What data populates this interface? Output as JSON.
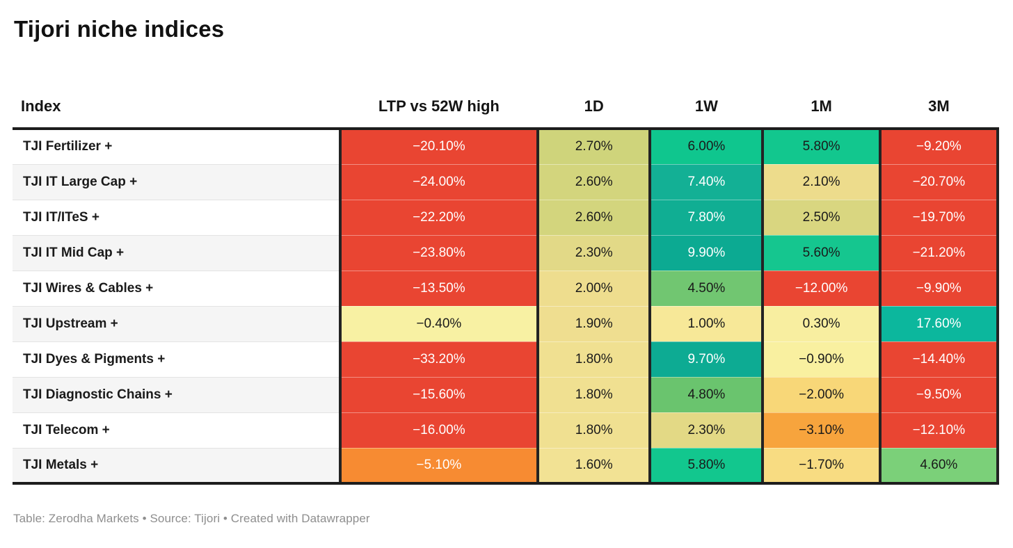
{
  "title": "Tijori niche indices",
  "columns": [
    "Index",
    "LTP vs 52W high",
    "1D",
    "1W",
    "1M",
    "3M"
  ],
  "rows": [
    {
      "label": "TJI Fertilizer +",
      "cells": [
        {
          "text": "−20.10%",
          "bg": "#e94532",
          "fg": "#ffffff"
        },
        {
          "text": "2.70%",
          "bg": "#cfd47b",
          "fg": "#1a1a1a"
        },
        {
          "text": "6.00%",
          "bg": "#0fc68e",
          "fg": "#1a1a1a"
        },
        {
          "text": "5.80%",
          "bg": "#12c78e",
          "fg": "#1a1a1a"
        },
        {
          "text": "−9.20%",
          "bg": "#e94532",
          "fg": "#ffffff"
        }
      ]
    },
    {
      "label": "TJI IT Large Cap +",
      "cells": [
        {
          "text": "−24.00%",
          "bg": "#e94532",
          "fg": "#ffffff"
        },
        {
          "text": "2.60%",
          "bg": "#d3d57d",
          "fg": "#1a1a1a"
        },
        {
          "text": "7.40%",
          "bg": "#13b095",
          "fg": "#ffffff"
        },
        {
          "text": "2.10%",
          "bg": "#eddc8c",
          "fg": "#1a1a1a"
        },
        {
          "text": "−20.70%",
          "bg": "#e94532",
          "fg": "#ffffff"
        }
      ]
    },
    {
      "label": "TJI IT/ITeS +",
      "cells": [
        {
          "text": "−22.20%",
          "bg": "#e94532",
          "fg": "#ffffff"
        },
        {
          "text": "2.60%",
          "bg": "#d3d57d",
          "fg": "#1a1a1a"
        },
        {
          "text": "7.80%",
          "bg": "#10ae93",
          "fg": "#ffffff"
        },
        {
          "text": "2.50%",
          "bg": "#d9d680",
          "fg": "#1a1a1a"
        },
        {
          "text": "−19.70%",
          "bg": "#e94532",
          "fg": "#ffffff"
        }
      ]
    },
    {
      "label": "TJI IT Mid Cap +",
      "cells": [
        {
          "text": "−23.80%",
          "bg": "#e94532",
          "fg": "#ffffff"
        },
        {
          "text": "2.30%",
          "bg": "#e2d987",
          "fg": "#1a1a1a"
        },
        {
          "text": "9.90%",
          "bg": "#0caa92",
          "fg": "#ffffff"
        },
        {
          "text": "5.60%",
          "bg": "#15c68f",
          "fg": "#1a1a1a"
        },
        {
          "text": "−21.20%",
          "bg": "#e94532",
          "fg": "#ffffff"
        }
      ]
    },
    {
      "label": "TJI Wires & Cables +",
      "cells": [
        {
          "text": "−13.50%",
          "bg": "#e94532",
          "fg": "#ffffff"
        },
        {
          "text": "2.00%",
          "bg": "#eedd8e",
          "fg": "#1a1a1a"
        },
        {
          "text": "4.50%",
          "bg": "#71c671",
          "fg": "#1a1a1a"
        },
        {
          "text": "−12.00%",
          "bg": "#e94532",
          "fg": "#ffffff"
        },
        {
          "text": "−9.90%",
          "bg": "#e94532",
          "fg": "#ffffff"
        }
      ]
    },
    {
      "label": "TJI Upstream +",
      "cells": [
        {
          "text": "−0.40%",
          "bg": "#f8f1a3",
          "fg": "#1a1a1a"
        },
        {
          "text": "1.90%",
          "bg": "#efde90",
          "fg": "#1a1a1a"
        },
        {
          "text": "1.00%",
          "bg": "#f7e898",
          "fg": "#1a1a1a"
        },
        {
          "text": "0.30%",
          "bg": "#f8eea0",
          "fg": "#1a1a1a"
        },
        {
          "text": "17.60%",
          "bg": "#0cb79d",
          "fg": "#ffffff"
        }
      ]
    },
    {
      "label": "TJI Dyes & Pigments +",
      "cells": [
        {
          "text": "−33.20%",
          "bg": "#e94532",
          "fg": "#ffffff"
        },
        {
          "text": "1.80%",
          "bg": "#f0e091",
          "fg": "#1a1a1a"
        },
        {
          "text": "9.70%",
          "bg": "#0dab93",
          "fg": "#ffffff"
        },
        {
          "text": "−0.90%",
          "bg": "#f9f0a0",
          "fg": "#1a1a1a"
        },
        {
          "text": "−14.40%",
          "bg": "#e94532",
          "fg": "#ffffff"
        }
      ]
    },
    {
      "label": "TJI Diagnostic Chains +",
      "cells": [
        {
          "text": "−15.60%",
          "bg": "#e94532",
          "fg": "#ffffff"
        },
        {
          "text": "1.80%",
          "bg": "#f0e091",
          "fg": "#1a1a1a"
        },
        {
          "text": "4.80%",
          "bg": "#6ac46e",
          "fg": "#1a1a1a"
        },
        {
          "text": "−2.00%",
          "bg": "#f8d778",
          "fg": "#1a1a1a"
        },
        {
          "text": "−9.50%",
          "bg": "#e94532",
          "fg": "#ffffff"
        }
      ]
    },
    {
      "label": "TJI Telecom +",
      "cells": [
        {
          "text": "−16.00%",
          "bg": "#e94532",
          "fg": "#ffffff"
        },
        {
          "text": "1.80%",
          "bg": "#f0e091",
          "fg": "#1a1a1a"
        },
        {
          "text": "2.30%",
          "bg": "#e3d985",
          "fg": "#1a1a1a"
        },
        {
          "text": "−3.10%",
          "bg": "#f7a43d",
          "fg": "#1a1a1a"
        },
        {
          "text": "−12.10%",
          "bg": "#e94532",
          "fg": "#ffffff"
        }
      ]
    },
    {
      "label": "TJI Metals +",
      "cells": [
        {
          "text": "−5.10%",
          "bg": "#f78b32",
          "fg": "#ffffff"
        },
        {
          "text": "1.60%",
          "bg": "#f2e294",
          "fg": "#1a1a1a"
        },
        {
          "text": "5.80%",
          "bg": "#12c78e",
          "fg": "#1a1a1a"
        },
        {
          "text": "−1.70%",
          "bg": "#f8dc82",
          "fg": "#1a1a1a"
        },
        {
          "text": "4.60%",
          "bg": "#7bd079",
          "fg": "#1a1a1a"
        }
      ]
    }
  ],
  "footer": "Table: Zerodha Markets • Source: Tijori • Created with Datawrapper",
  "chart_data": {
    "type": "heatmap",
    "title": "Tijori niche indices",
    "columns": [
      "Index",
      "LTP vs 52W high",
      "1D",
      "1W",
      "1M",
      "3M"
    ],
    "categories": [
      "TJI Fertilizer +",
      "TJI IT Large Cap +",
      "TJI IT/ITeS +",
      "TJI IT Mid Cap +",
      "TJI Wires & Cables +",
      "TJI Upstream +",
      "TJI Dyes & Pigments +",
      "TJI Diagnostic Chains +",
      "TJI Telecom +",
      "TJI Metals +"
    ],
    "series": [
      {
        "name": "LTP vs 52W high",
        "values": [
          -20.1,
          -24.0,
          -22.2,
          -23.8,
          -13.5,
          -0.4,
          -33.2,
          -15.6,
          -16.0,
          -5.1
        ]
      },
      {
        "name": "1D",
        "values": [
          2.7,
          2.6,
          2.6,
          2.3,
          2.0,
          1.9,
          1.8,
          1.8,
          1.8,
          1.6
        ]
      },
      {
        "name": "1W",
        "values": [
          6.0,
          7.4,
          7.8,
          9.9,
          4.5,
          1.0,
          9.7,
          4.8,
          2.3,
          5.8
        ]
      },
      {
        "name": "1M",
        "values": [
          5.8,
          2.1,
          2.5,
          5.6,
          -12.0,
          0.3,
          -0.9,
          -2.0,
          -3.1,
          -1.7
        ]
      },
      {
        "name": "3M",
        "values": [
          -9.2,
          -20.7,
          -19.7,
          -21.2,
          -9.9,
          17.6,
          -14.4,
          -9.5,
          -12.1,
          4.6
        ]
      }
    ],
    "unit": "%",
    "color_scale": {
      "negative_strong": "#e94532",
      "negative_mild": "#f78b32",
      "neutral": "#f8f1a3",
      "positive_mild": "#71c671",
      "positive_strong": "#0dab93"
    },
    "legend_position": "none",
    "grid": "cell-borders",
    "footer": "Table: Zerodha Markets • Source: Tijori • Created with Datawrapper"
  }
}
